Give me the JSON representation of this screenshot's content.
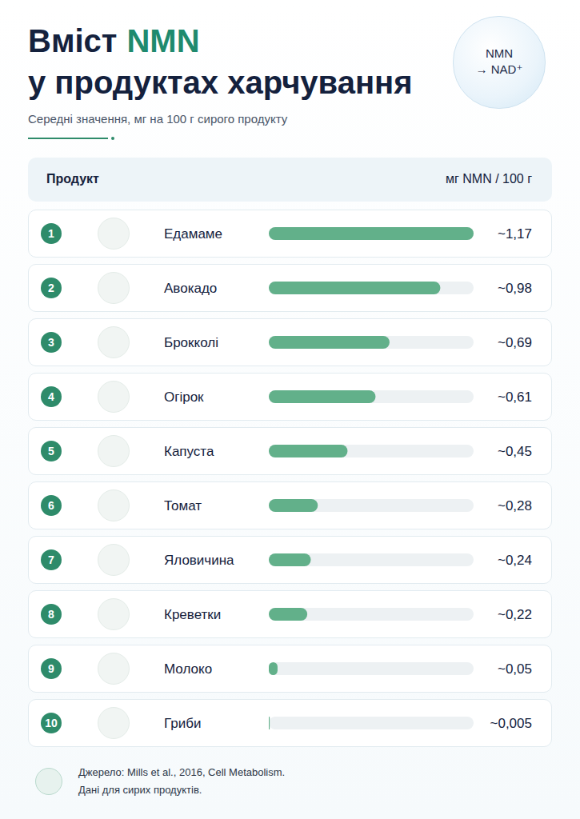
{
  "chart_data": {
    "type": "bar",
    "title": [
      "Вміст",
      "NMN",
      "у продуктах харчування"
    ],
    "subtitle": "Середні значення, мг на 100 г сирого продукту",
    "badge": [
      "NMN",
      "→ NAD⁺"
    ],
    "header": [
      "Продукт",
      "мг NMN / 100 г"
    ],
    "row_numbers": [
      1,
      2,
      3,
      4,
      5,
      6,
      7,
      8,
      9,
      10
    ],
    "categories": [
      "Едамаме",
      "Авокадо",
      "Брокколі",
      "Огірок",
      "Капуста",
      "Томат",
      "Яловичина",
      "Креветки",
      "Молоко",
      "Гриби"
    ],
    "values": [
      1.17,
      0.98,
      0.69,
      0.61,
      0.45,
      0.28,
      0.24,
      0.22,
      0.05,
      0.005
    ],
    "value_labels": [
      "~1,17",
      "~0,98",
      "~0,69",
      "~0,61",
      "~0,45",
      "~0,28",
      "~0,24",
      "~0,22",
      "~0,05",
      "~0,005"
    ],
    "color": "#62b08a",
    "orientation": "horizontal",
    "xlim": [
      0,
      1.17
    ],
    "data_labels": true,
    "tick_labels": "y",
    "grid": false,
    "source": [
      "Джерело: Mills et al., 2016, Cell Metabolism.",
      "Дані для сирих продуктів."
    ]
  }
}
